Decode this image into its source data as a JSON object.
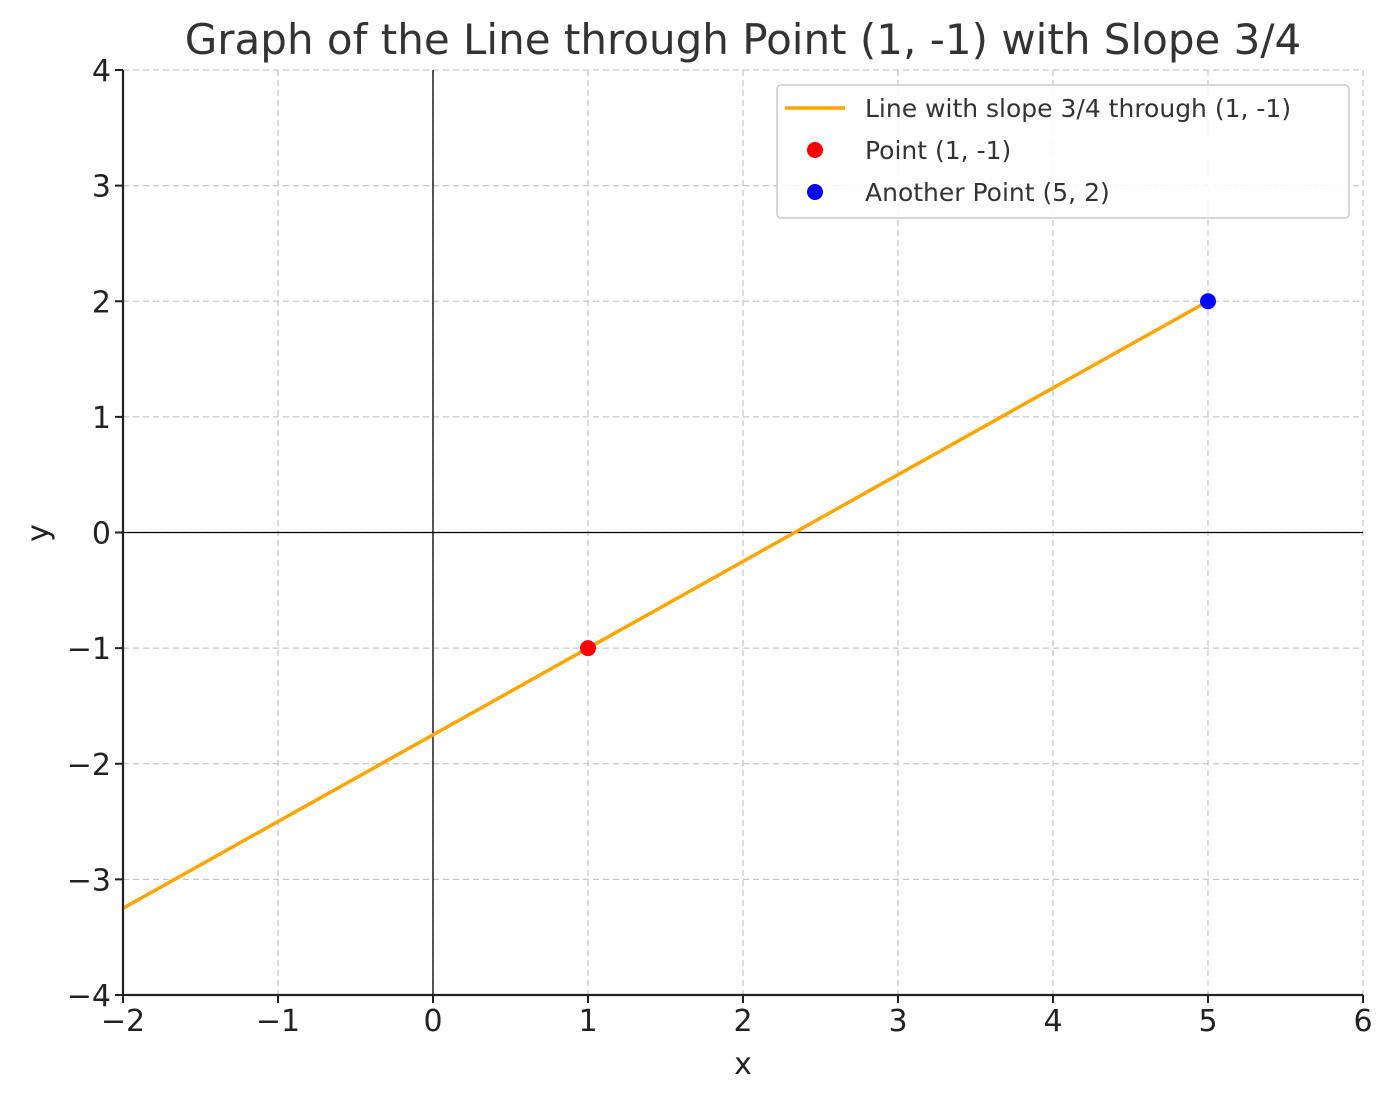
{
  "chart_data": {
    "type": "line",
    "title": "Graph of the Line through Point (1, -1) with Slope 3/4",
    "xlabel": "x",
    "ylabel": "y",
    "xlim": [
      -2,
      6
    ],
    "ylim": [
      -4,
      4
    ],
    "x_ticks": [
      "−2",
      "−1",
      "0",
      "1",
      "2",
      "3",
      "4",
      "5",
      "6"
    ],
    "y_ticks": [
      "−4",
      "−3",
      "−2",
      "−1",
      "0",
      "1",
      "2",
      "3",
      "4"
    ],
    "x_tick_values": [
      -2,
      -1,
      0,
      1,
      2,
      3,
      4,
      5,
      6
    ],
    "y_tick_values": [
      -4,
      -3,
      -2,
      -1,
      0,
      1,
      2,
      3,
      4
    ],
    "grid": true,
    "legend_position": "top-right",
    "series": [
      {
        "name": "Line with slope 3/4 through (1, -1)",
        "kind": "line",
        "color": "#FFA500",
        "x": [
          -2,
          5
        ],
        "y": [
          -3.25,
          2
        ]
      },
      {
        "name": "Point (1, -1)",
        "kind": "point",
        "color": "#FF0000",
        "x": [
          1
        ],
        "y": [
          -1
        ]
      },
      {
        "name": "Another Point (5, 2)",
        "kind": "point",
        "color": "#0000FF",
        "x": [
          5
        ],
        "y": [
          2
        ]
      }
    ]
  }
}
